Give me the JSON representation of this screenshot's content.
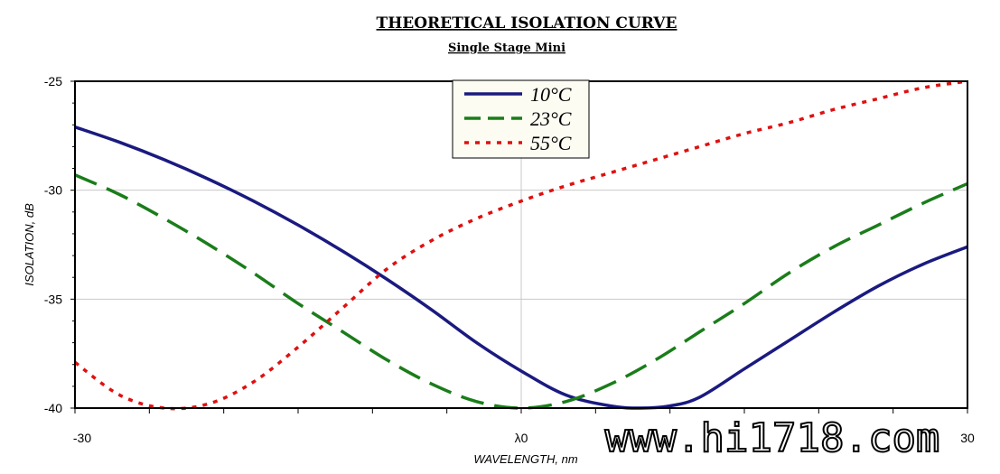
{
  "chart_data": {
    "type": "line",
    "title": "THEORETICAL ISOLATION CURVE",
    "subtitle": "Single Stage Mini",
    "xlabel": "WAVELENGTH, nm",
    "ylabel": "ISOLATION, dB",
    "xlim": [
      -30,
      30
    ],
    "ylim": [
      -40,
      -25
    ],
    "x_tick_labels": [
      {
        "x": -30,
        "label": "-30"
      },
      {
        "x": 0,
        "label": "λ0"
      },
      {
        "x": 30,
        "label": "30"
      }
    ],
    "y_ticks": [
      -25,
      -30,
      -35,
      -40
    ],
    "grid": true,
    "legend_position": "top-center",
    "series": [
      {
        "name": "10°C",
        "color": "#1a1a80",
        "dash": "solid",
        "points": [
          [
            -30,
            -27.1
          ],
          [
            -27,
            -27.8
          ],
          [
            -24,
            -28.6
          ],
          [
            -21,
            -29.5
          ],
          [
            -18,
            -30.5
          ],
          [
            -15,
            -31.6
          ],
          [
            -12,
            -32.8
          ],
          [
            -9,
            -34.1
          ],
          [
            -6,
            -35.5
          ],
          [
            -3,
            -37
          ],
          [
            0,
            -38.3
          ],
          [
            3,
            -39.4
          ],
          [
            6,
            -39.9
          ],
          [
            8,
            -40
          ],
          [
            10,
            -39.9
          ],
          [
            12,
            -39.5
          ],
          [
            15,
            -38.2
          ],
          [
            18,
            -36.9
          ],
          [
            21,
            -35.6
          ],
          [
            24,
            -34.4
          ],
          [
            27,
            -33.4
          ],
          [
            30,
            -32.6
          ]
        ]
      },
      {
        "name": "23°C",
        "color": "#1a7d1a",
        "dash": "dashed",
        "points": [
          [
            -30,
            -29.3
          ],
          [
            -27,
            -30.2
          ],
          [
            -24,
            -31.3
          ],
          [
            -21,
            -32.5
          ],
          [
            -18,
            -33.8
          ],
          [
            -15,
            -35.2
          ],
          [
            -12,
            -36.5
          ],
          [
            -9,
            -37.8
          ],
          [
            -6,
            -38.9
          ],
          [
            -3,
            -39.7
          ],
          [
            0,
            -40
          ],
          [
            3,
            -39.7
          ],
          [
            6,
            -38.9
          ],
          [
            9,
            -37.8
          ],
          [
            12,
            -36.5
          ],
          [
            15,
            -35.2
          ],
          [
            18,
            -33.8
          ],
          [
            21,
            -32.6
          ],
          [
            24,
            -31.6
          ],
          [
            27,
            -30.6
          ],
          [
            30,
            -29.7
          ]
        ]
      },
      {
        "name": "55°C",
        "color": "#e01010",
        "dash": "dotted",
        "points": [
          [
            -30,
            -37.9
          ],
          [
            -27,
            -39.4
          ],
          [
            -24,
            -40
          ],
          [
            -21,
            -39.8
          ],
          [
            -18,
            -38.8
          ],
          [
            -15,
            -37.2
          ],
          [
            -12,
            -35.4
          ],
          [
            -9,
            -33.6
          ],
          [
            -6,
            -32.3
          ],
          [
            -3,
            -31.3
          ],
          [
            0,
            -30.5
          ],
          [
            3,
            -29.8
          ],
          [
            6,
            -29.2
          ],
          [
            9,
            -28.6
          ],
          [
            12,
            -28
          ],
          [
            15,
            -27.4
          ],
          [
            18,
            -26.9
          ],
          [
            21,
            -26.3
          ],
          [
            24,
            -25.8
          ],
          [
            27,
            -25.3
          ],
          [
            30,
            -25
          ]
        ]
      }
    ]
  },
  "watermark": "www.hi1718.com"
}
